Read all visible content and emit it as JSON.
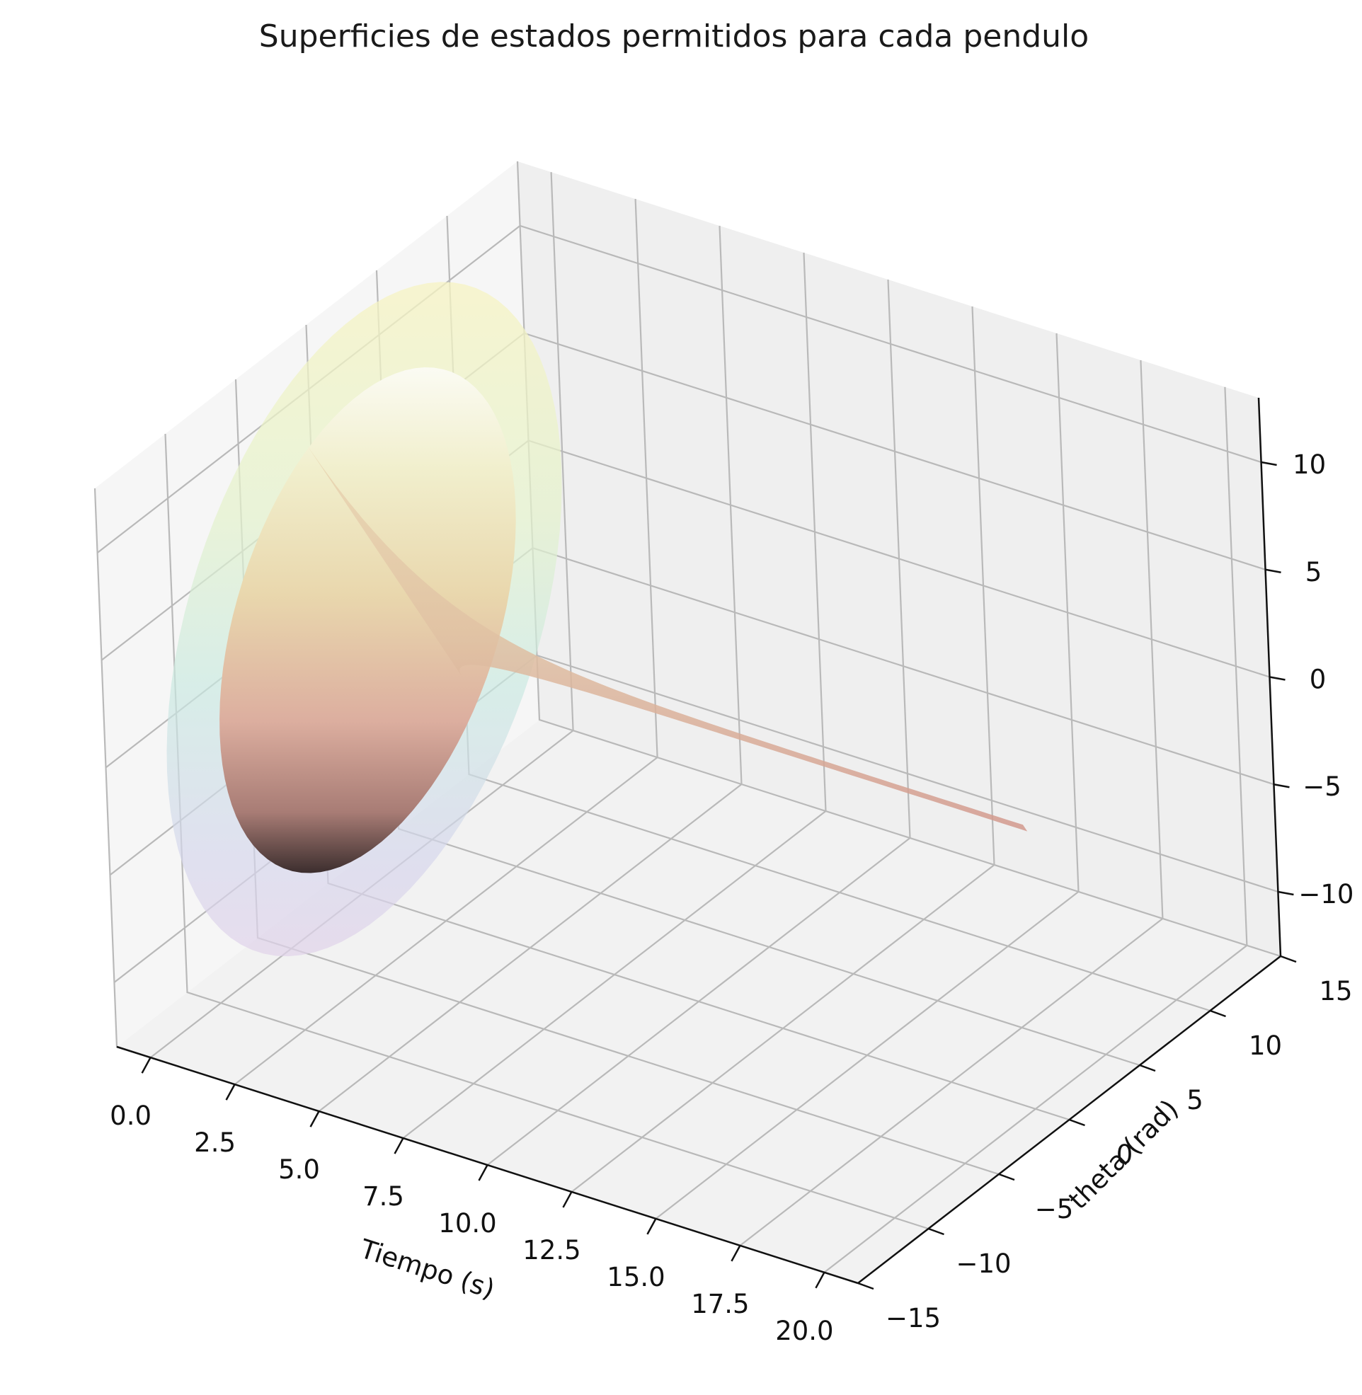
{
  "chart_data": {
    "type": "surface3d",
    "title": "Superficies de estados permitidos para cada pendulo",
    "x_axis": {
      "label": "Tiempo (s)",
      "range": [
        -1,
        21
      ],
      "ticks": [
        "0.0",
        "2.5",
        "5.0",
        "7.5",
        "10.0",
        "12.5",
        "15.0",
        "17.5",
        "20.0"
      ]
    },
    "y_axis": {
      "label": "theta (rad)",
      "range": [
        -15,
        15
      ],
      "ticks": [
        "−15",
        "−10",
        "−5",
        "0",
        "5",
        "10",
        "15"
      ]
    },
    "z_axis": {
      "label": "",
      "range": [
        -13,
        13
      ],
      "ticks": [
        "−10",
        "−5",
        "0",
        "5",
        "10"
      ]
    },
    "grid": true,
    "surfaces": [
      {
        "colormap": "pastel (teal-yellow-purple)",
        "alpha": 0.35,
        "t_range": [
          0,
          2.5
        ],
        "radius_at_start": 14
      },
      {
        "colormap": "pink-copper",
        "alpha": 0.75,
        "t_range": [
          0,
          20
        ],
        "radius_at_start": 10.5,
        "radius_at_end": 0.3
      }
    ]
  }
}
